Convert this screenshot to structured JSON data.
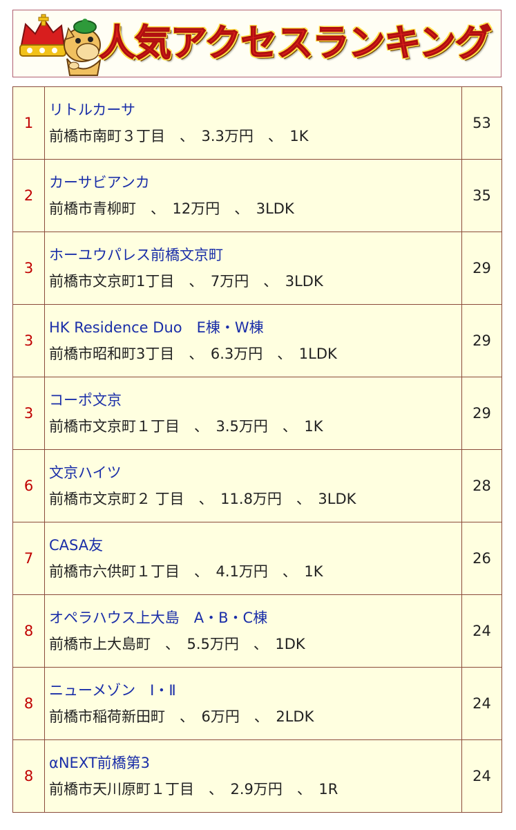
{
  "header": {
    "title": "人気アクセスランキング",
    "mascot_icon": "crown-horse-mascot-icon",
    "title_color": "#e0201b",
    "title_outline_color": "#ffe14a"
  },
  "colors": {
    "rank": "#c00000",
    "name": "#1a2ea8",
    "detail": "#222222",
    "cell_bg": "#ffffe0",
    "border": "#8a4a3a"
  },
  "rows": [
    {
      "rank": "1",
      "name": "リトルカーサ",
      "detail": "前橋市南町３丁目　、　3.3万円　、　1K",
      "count": "53"
    },
    {
      "rank": "2",
      "name": "カーサビアンカ",
      "detail": "前橋市青柳町　、　12万円　、　3LDK",
      "count": "35"
    },
    {
      "rank": "3",
      "name": "ホーユウパレス前橋文京町",
      "detail": "前橋市文京町1丁目　、　7万円　、　3LDK",
      "count": "29"
    },
    {
      "rank": "3",
      "name": "HK Residence Duo　E棟・W棟",
      "detail": "前橋市昭和町3丁目　、　6.3万円　、　1LDK",
      "count": "29"
    },
    {
      "rank": "3",
      "name": "コーポ文京",
      "detail": "前橋市文京町１丁目　、　3.5万円　、　1K",
      "count": "29"
    },
    {
      "rank": "6",
      "name": "文京ハイツ",
      "detail": "前橋市文京町２ 丁目　、　11.8万円　、　3LDK",
      "count": "28"
    },
    {
      "rank": "7",
      "name": "CASA友",
      "detail": "前橋市六供町１丁目　、　4.1万円　、　1K",
      "count": "26"
    },
    {
      "rank": "8",
      "name": "オペラハウス上大島　A・B・C棟",
      "detail": "前橋市上大島町　、　5.5万円　、　1DK",
      "count": "24"
    },
    {
      "rank": "8",
      "name": "ニューメゾン　Ⅰ・Ⅱ",
      "detail": "前橋市稲荷新田町　、　6万円　、　2LDK",
      "count": "24"
    },
    {
      "rank": "8",
      "name": "αNEXT前橋第3",
      "detail": "前橋市天川原町１丁目　、　2.9万円　、　1R",
      "count": "24"
    }
  ]
}
